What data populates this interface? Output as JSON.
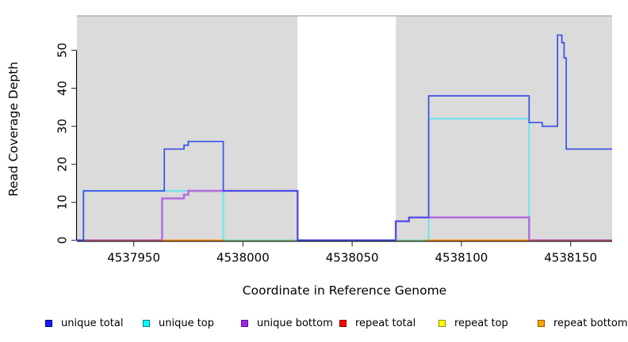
{
  "chart_data": {
    "type": "line",
    "subtype": "step-coverage",
    "title": "",
    "xlabel": "Coordinate in Reference Genome",
    "ylabel": "Read Coverage Depth",
    "xlim": [
      4537924,
      4538169
    ],
    "ylim": [
      0,
      59
    ],
    "x_ticks": [
      "4537950",
      "4538000",
      "4538050",
      "4538100",
      "4538150"
    ],
    "x_tick_values": [
      4537950,
      4538000,
      4538050,
      4538100,
      4538150
    ],
    "y_ticks": [
      "0",
      "10",
      "20",
      "30",
      "40",
      "50"
    ],
    "y_tick_values": [
      0,
      10,
      20,
      30,
      40,
      50
    ],
    "grid": false,
    "plot_background": "#dbdbdb",
    "background_regions": [
      {
        "start": 4537924,
        "end": 4538025
      },
      {
        "start": 4538070,
        "end": 4538169
      }
    ],
    "uncovered_gap": {
      "start": 4538025,
      "end": 4538070
    },
    "series": [
      {
        "name": "unique total",
        "color": "#3a50e8",
        "width": 1.7,
        "zorder": 6,
        "points": [
          [
            4537924,
            0
          ],
          [
            4537927,
            13
          ],
          [
            4537964,
            24
          ],
          [
            4537973,
            25
          ],
          [
            4537975,
            26
          ],
          [
            4537991,
            13
          ],
          [
            4538025,
            0
          ],
          [
            4538070,
            5
          ],
          [
            4538076,
            6
          ],
          [
            4538085,
            38
          ],
          [
            4538131,
            31
          ],
          [
            4538137,
            30
          ],
          [
            4538144,
            54
          ],
          [
            4538146,
            52
          ],
          [
            4538147,
            48
          ],
          [
            4538148,
            24
          ]
        ],
        "end": 4538169
      },
      {
        "name": "unique top",
        "color": "#76e4ec",
        "width": 2.2,
        "zorder": 3,
        "points": [
          [
            4537924,
            0
          ],
          [
            4537927,
            13
          ],
          [
            4537991,
            0
          ],
          [
            4538085,
            32
          ],
          [
            4538131,
            0
          ]
        ],
        "end": 4538169
      },
      {
        "name": "unique bottom",
        "color": "#b26fe0",
        "width": 2.6,
        "zorder": 4,
        "points": [
          [
            4537924,
            0
          ],
          [
            4537963,
            11
          ],
          [
            4537973,
            12
          ],
          [
            4537975,
            13
          ],
          [
            4538025,
            0
          ],
          [
            4538070,
            5
          ],
          [
            4538076,
            6
          ],
          [
            4538131,
            0
          ]
        ],
        "end": 4538169
      },
      {
        "name": "repeat total",
        "color": "#c7608c",
        "width": 1.2,
        "zorder": 1,
        "points": [
          [
            4537924,
            0
          ]
        ],
        "end": 4538169
      },
      {
        "name": "repeat top",
        "color": "#f0f000",
        "width": 1.2,
        "zorder": 1,
        "points": [
          [
            4537924,
            0
          ]
        ],
        "end": 4538169
      },
      {
        "name": "repeat bottom",
        "color": "#ff9015",
        "width": 1.2,
        "zorder": 1,
        "points": [
          [
            4537924,
            0
          ]
        ],
        "end": 4538169
      }
    ],
    "zero_line_rendered_segments": [
      {
        "start": 4537927,
        "end": 4537963,
        "color": "#c7608c"
      },
      {
        "start": 4537963,
        "end": 4537991,
        "color": "#ff9015"
      },
      {
        "start": 4537991,
        "end": 4538025,
        "color": "#8fcd92"
      },
      {
        "start": 4538070,
        "end": 4538084,
        "color": "#8fcd92"
      },
      {
        "start": 4538084,
        "end": 4538131,
        "color": "#ff9015"
      },
      {
        "start": 4538131,
        "end": 4538169,
        "color": "#c7608c"
      }
    ],
    "legend_position": "bottom",
    "legend": [
      {
        "label": "unique total",
        "fill": "#1a1aff",
        "border": "#000080"
      },
      {
        "label": "unique top",
        "fill": "#00ffff",
        "border": "#007a7a"
      },
      {
        "label": "unique bottom",
        "fill": "#a020f0",
        "border": "#5c1090"
      },
      {
        "label": "repeat total",
        "fill": "#ff0000",
        "border": "#8b0000"
      },
      {
        "label": "repeat top",
        "fill": "#ffff00",
        "border": "#8a8a00"
      },
      {
        "label": "repeat bottom",
        "fill": "#ffa500",
        "border": "#8a5a00"
      }
    ]
  }
}
